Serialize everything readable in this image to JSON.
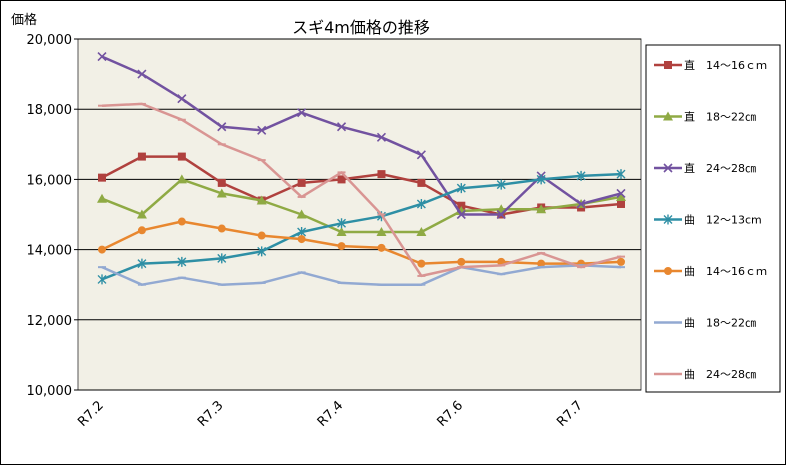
{
  "chart_data": {
    "type": "line",
    "title": "スギ4m価格の推移",
    "ylabel": "価格",
    "xlabel": "",
    "ylim": [
      10000,
      20000
    ],
    "yticks": [
      10000,
      12000,
      14000,
      16000,
      18000,
      20000
    ],
    "ytick_labels": [
      "10,000",
      "12,000",
      "14,000",
      "16,000",
      "18,000",
      "20,000"
    ],
    "x_count": 14,
    "x_tick_positions": [
      0,
      3,
      6,
      9,
      12
    ],
    "x_tick_labels": [
      "R7.2",
      "R7.3",
      "R7.4",
      "R7.6",
      "R7.7"
    ],
    "grid": "horizontal",
    "legend_position": "right",
    "plot_background": "#f2f0e6",
    "series": [
      {
        "name": "直　14～16ｃｍ",
        "color": "#b0413e",
        "marker": "square",
        "values": [
          16050,
          16650,
          16650,
          15900,
          15400,
          15900,
          16000,
          16150,
          15900,
          15250,
          15000,
          15200,
          15200,
          15300
        ]
      },
      {
        "name": "直　18～22㎝",
        "color": "#8faa44",
        "marker": "triangle",
        "values": [
          15450,
          15000,
          16000,
          15600,
          15400,
          15000,
          14500,
          14500,
          14500,
          15100,
          15150,
          15150,
          15300,
          15500
        ]
      },
      {
        "name": "直　24～28㎝",
        "color": "#7252a0",
        "marker": "x",
        "values": [
          19500,
          19000,
          18300,
          17500,
          17400,
          17900,
          17500,
          17200,
          16700,
          15000,
          15000,
          16100,
          15300,
          15600
        ]
      },
      {
        "name": "曲　12～13cm",
        "color": "#2e8fa5",
        "marker": "star",
        "values": [
          13150,
          13600,
          13650,
          13750,
          13950,
          14500,
          14750,
          14950,
          15300,
          15750,
          15850,
          16000,
          16100,
          16150
        ]
      },
      {
        "name": "曲　14～16ｃｍ",
        "color": "#e8872f",
        "marker": "circle",
        "values": [
          14000,
          14550,
          14800,
          14600,
          14400,
          14300,
          14100,
          14050,
          13600,
          13650,
          13650,
          13600,
          13600,
          13650
        ]
      },
      {
        "name": "曲　18～22㎝",
        "color": "#92a9d2",
        "marker": "dash",
        "values": [
          13500,
          13000,
          13200,
          13000,
          13050,
          13350,
          13050,
          13000,
          13000,
          13500,
          13300,
          13500,
          13550,
          13500
        ]
      },
      {
        "name": "曲　24～28㎝",
        "color": "#d99593",
        "marker": "dash",
        "values": [
          18100,
          18150,
          17700,
          17000,
          16550,
          15500,
          16200,
          15000,
          13250,
          13500,
          13550,
          13900,
          13500,
          13800
        ]
      }
    ]
  }
}
